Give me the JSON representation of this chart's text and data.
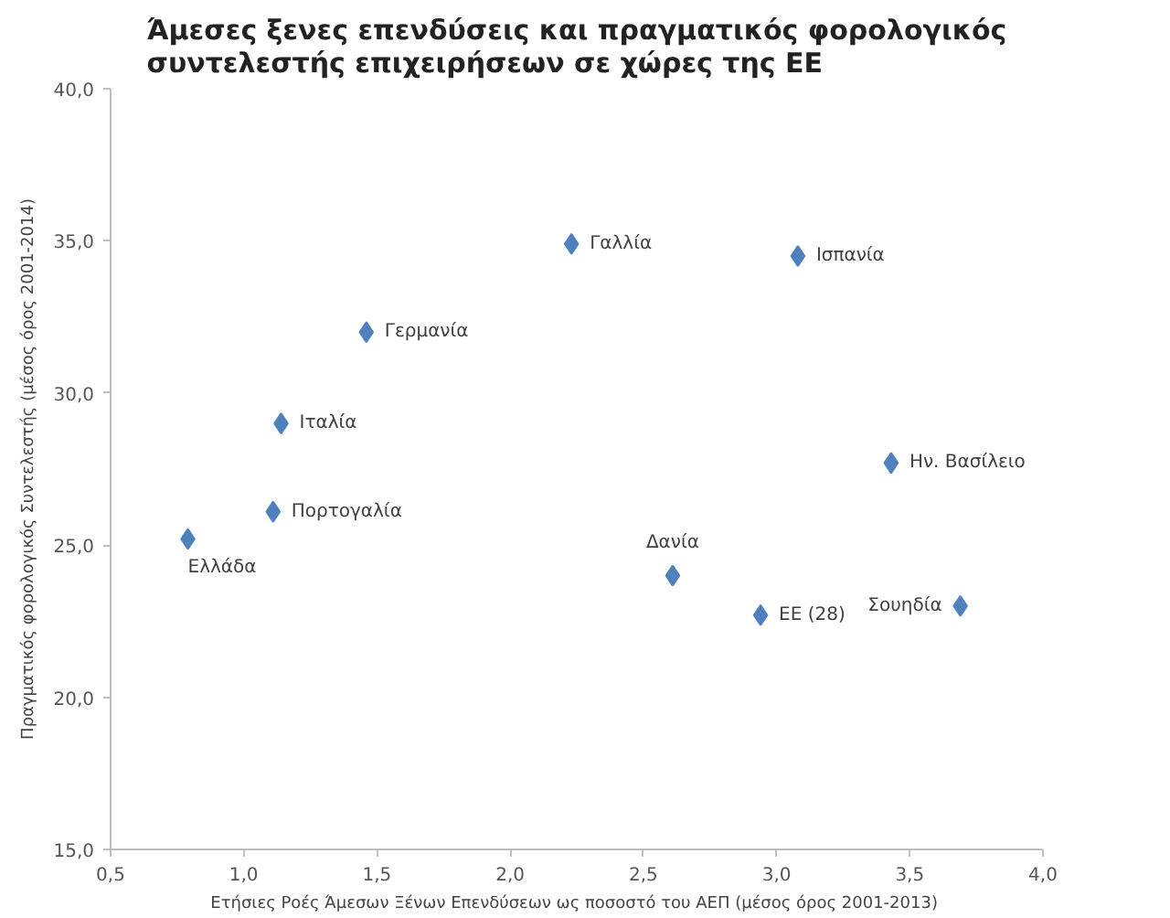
{
  "chart_data": {
    "type": "scatter",
    "title": "Άμεσες ξενες επενδύσεις και πραγματικός φορολογικός\nσυντελεστής επιχειρήσεων σε χώρες της ΕΕ",
    "xlabel": "Ετήσιες Ροές Άμεσων Ξένων Επενδύσεων  ως ποσοστό του ΑΕΠ (μέσος όρος 2001-2013)",
    "ylabel": "Πραγματικός φορολογικός Συντελεστής (μέσος όρος 2001-2014)",
    "x": [
      0.79,
      1.14,
      1.11,
      1.46,
      2.23,
      3.08,
      3.43,
      2.61,
      2.94,
      3.69
    ],
    "series": [
      {
        "color": "#4f81bd",
        "values": [
          25.2,
          29.0,
          26.1,
          32.0,
          34.9,
          34.5,
          27.7,
          24.0,
          22.7,
          23.0
        ]
      }
    ],
    "marker": "diamond",
    "annotations": [
      {
        "text": "Ελλάδα",
        "x": 0.79,
        "y": 25.2
      },
      {
        "text": "Ιταλία",
        "x": 1.14,
        "y": 29.0
      },
      {
        "text": "Πορτογαλία",
        "x": 1.11,
        "y": 26.1
      },
      {
        "text": "Γερμανία",
        "x": 1.46,
        "y": 32.0
      },
      {
        "text": "Γαλλία",
        "x": 2.23,
        "y": 34.9
      },
      {
        "text": "Ισπανία",
        "x": 3.08,
        "y": 34.5
      },
      {
        "text": "Ην. Βασίλειο",
        "x": 3.43,
        "y": 27.7
      },
      {
        "text": "Δανία",
        "x": 2.61,
        "y": 24.0
      },
      {
        "text": "ΕΕ (28)",
        "x": 2.94,
        "y": 22.7
      },
      {
        "text": "Σουηδία",
        "x": 3.69,
        "y": 23.0
      }
    ],
    "xlim": [
      0.5,
      4.0
    ],
    "xticks": [
      {
        "value": 0.5,
        "label": "0,5"
      },
      {
        "value": 1.0,
        "label": "1,0"
      },
      {
        "value": 1.5,
        "label": "1,5"
      },
      {
        "value": 2.0,
        "label": "2,0"
      },
      {
        "value": 2.5,
        "label": "2,5"
      },
      {
        "value": 3.0,
        "label": "3,0"
      },
      {
        "value": 3.5,
        "label": "3,5"
      },
      {
        "value": 4.0,
        "label": "4,0"
      }
    ],
    "ylim": [
      15,
      40
    ],
    "yticks": [
      {
        "value": 15,
        "label": "15,0"
      },
      {
        "value": 20,
        "label": "20,0"
      },
      {
        "value": 25,
        "label": "25,0"
      },
      {
        "value": 30,
        "label": "30,0"
      },
      {
        "value": 35,
        "label": "35,0"
      },
      {
        "value": 40,
        "label": "40,0"
      }
    ]
  }
}
